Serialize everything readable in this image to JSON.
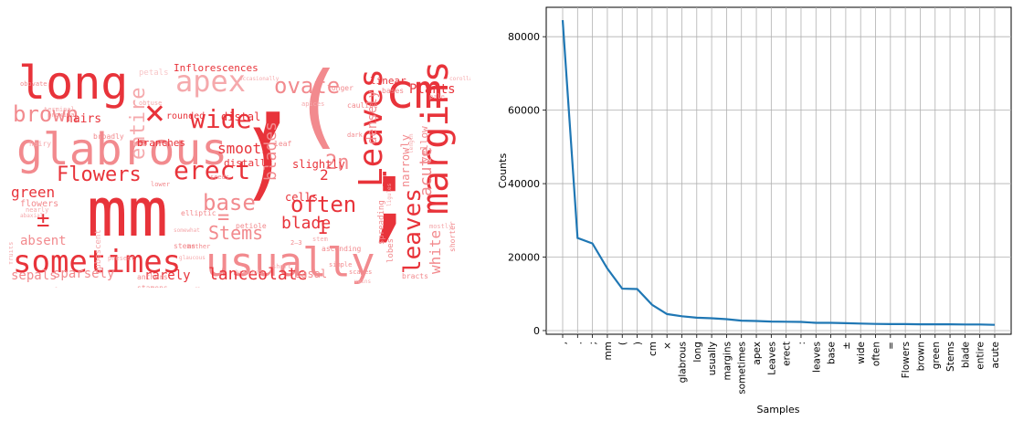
{
  "wordcloud": {
    "palette": [
      "#e8333a",
      "#ee5a5f",
      "#f28a8e",
      "#f5a9ac",
      "#f8c7c9",
      "#fbdcdd"
    ],
    "words": [
      {
        "text": "mm",
        "size": 74,
        "color": "#e8333a"
      },
      {
        "text": ",",
        "size": 120,
        "color": "#e8333a"
      },
      {
        "text": ";",
        "size": 110,
        "color": "#e8333a"
      },
      {
        "text": "(",
        "size": 100,
        "color": "#f28a8e"
      },
      {
        "text": ")",
        "size": 90,
        "color": "#e8333a"
      },
      {
        "text": "cm",
        "size": 52,
        "color": "#e8333a"
      },
      {
        "text": "long",
        "size": 50,
        "color": "#e8333a"
      },
      {
        "text": "glabrous",
        "size": 48,
        "color": "#f28a8e"
      },
      {
        "text": "usually",
        "size": 44,
        "color": "#f28a8e"
      },
      {
        "text": "margins",
        "size": 40,
        "color": "#e8333a"
      },
      {
        "text": "sometimes",
        "size": 34,
        "color": "#e8333a"
      },
      {
        "text": "Leaves",
        "size": 36,
        "color": "#e8333a"
      },
      {
        "text": "apex",
        "size": 32,
        "color": "#f5a9ac"
      },
      {
        "text": "×",
        "size": 38,
        "color": "#e8333a"
      },
      {
        "text": "wide",
        "size": 28,
        "color": "#e8333a"
      },
      {
        "text": "erect",
        "size": 28,
        "color": "#e8333a"
      },
      {
        "text": "brown",
        "size": 24,
        "color": "#f28a8e"
      },
      {
        "text": "ovate",
        "size": 24,
        "color": "#f28a8e"
      },
      {
        "text": "entire",
        "size": 22,
        "color": "#f5a9ac"
      },
      {
        "text": "Flowers",
        "size": 22,
        "color": "#e8333a"
      },
      {
        "text": "leaves",
        "size": 26,
        "color": "#e8333a"
      },
      {
        "text": "base",
        "size": 24,
        "color": "#f28a8e"
      },
      {
        "text": "often",
        "size": 24,
        "color": "#e8333a"
      },
      {
        "text": "Stems",
        "size": 20,
        "color": "#f28a8e"
      },
      {
        "text": "smooth",
        "size": 16,
        "color": "#e8333a"
      },
      {
        "text": "blades",
        "size": 18,
        "color": "#f28a8e"
      },
      {
        "text": "blade",
        "size": 18,
        "color": "#e8333a"
      },
      {
        "text": "2n",
        "size": 22,
        "color": "#f28a8e"
      },
      {
        "text": "acute",
        "size": 18,
        "color": "#f28a8e"
      },
      {
        "text": "densely",
        "size": 14,
        "color": "#f28a8e"
      },
      {
        "text": "green",
        "size": 16,
        "color": "#e8333a"
      },
      {
        "text": "lanceolate",
        "size": 18,
        "color": "#e8333a"
      },
      {
        "text": "white",
        "size": 16,
        "color": "#f28a8e"
      },
      {
        "text": "sparsely",
        "size": 14,
        "color": "#f28a8e"
      },
      {
        "text": "rarely",
        "size": 14,
        "color": "#e8333a"
      },
      {
        "text": "sepals",
        "size": 14,
        "color": "#f28a8e"
      },
      {
        "text": "absent",
        "size": 14,
        "color": "#f28a8e"
      },
      {
        "text": "narrowly",
        "size": 12,
        "color": "#f28a8e"
      },
      {
        "text": "distal",
        "size": 12,
        "color": "#e8333a"
      },
      {
        "text": "Plants",
        "size": 14,
        "color": "#e8333a"
      },
      {
        "text": "Inflorescences",
        "size": 11,
        "color": "#e8333a"
      },
      {
        "text": "hairs",
        "size": 13,
        "color": "#e8333a"
      },
      {
        "text": "branches",
        "size": 11,
        "color": "#e8333a"
      },
      {
        "text": "slightly",
        "size": 12,
        "color": "#e8333a"
      },
      {
        "text": "cells",
        "size": 12,
        "color": "#e8333a"
      },
      {
        "text": "basal",
        "size": 12,
        "color": "#f28a8e"
      },
      {
        "text": "distally",
        "size": 11,
        "color": "#e8333a"
      },
      {
        "text": "yellow",
        "size": 11,
        "color": "#f28a8e"
      },
      {
        "text": "linear",
        "size": 11,
        "color": "#e8333a"
      },
      {
        "text": "rounded",
        "size": 10,
        "color": "#e8333a"
      },
      {
        "text": "flowers",
        "size": 10,
        "color": "#f28a8e"
      },
      {
        "text": "±",
        "size": 24,
        "color": "#e8333a"
      },
      {
        "text": "=",
        "size": 22,
        "color": "#f28a8e"
      },
      {
        "text": ":",
        "size": 30,
        "color": "#e8333a"
      },
      {
        "text": "1",
        "size": 20,
        "color": "#e8333a"
      },
      {
        "text": "2",
        "size": 16,
        "color": "#e8333a"
      },
      {
        "text": "lobes",
        "size": 9,
        "color": "#f28a8e"
      },
      {
        "text": "spreading",
        "size": 9,
        "color": "#f28a8e"
      },
      {
        "text": "petals",
        "size": 9,
        "color": "#f8c7c9"
      },
      {
        "text": "bracts",
        "size": 8,
        "color": "#f28a8e"
      },
      {
        "text": "stamens",
        "size": 8,
        "color": "#f28a8e"
      },
      {
        "text": "hairy",
        "size": 8,
        "color": "#f5a9ac"
      },
      {
        "text": "leaf",
        "size": 8,
        "color": "#f28a8e"
      },
      {
        "text": "cauline",
        "size": 8,
        "color": "#f28a8e"
      },
      {
        "text": "petiole",
        "size": 8,
        "color": "#f28a8e"
      },
      {
        "text": "ascending",
        "size": 8,
        "color": "#f28a8e"
      },
      {
        "text": "stems",
        "size": 8,
        "color": "#f28a8e"
      },
      {
        "text": "anthers",
        "size": 8,
        "color": "#f28a8e"
      },
      {
        "text": "pubescent",
        "size": 9,
        "color": "#f5a9ac"
      },
      {
        "text": "longer",
        "size": 8,
        "color": "#f28a8e"
      },
      {
        "text": "shorter",
        "size": 8,
        "color": "#f28a8e"
      },
      {
        "text": "bases",
        "size": 8,
        "color": "#f28a8e"
      },
      {
        "text": "broadly",
        "size": 8,
        "color": "#f28a8e"
      },
      {
        "text": "elliptic",
        "size": 8,
        "color": "#f28a8e"
      },
      {
        "text": "apices",
        "size": 7,
        "color": "#f5a9ac"
      },
      {
        "text": "lower",
        "size": 7,
        "color": "#f28a8e"
      },
      {
        "text": "present",
        "size": 7,
        "color": "#f5a9ac"
      },
      {
        "text": "dark",
        "size": 7,
        "color": "#f28a8e"
      },
      {
        "text": "florets",
        "size": 7,
        "color": "#f5a9ac"
      },
      {
        "text": "scales",
        "size": 7,
        "color": "#f28a8e"
      },
      {
        "text": "mostly",
        "size": 7,
        "color": "#f5a9ac"
      },
      {
        "text": "surfaces",
        "size": 7,
        "color": "#f5a9ac"
      },
      {
        "text": "nearly",
        "size": 7,
        "color": "#f5a9ac"
      },
      {
        "text": "fruits",
        "size": 7,
        "color": "#f5a9ac"
      },
      {
        "text": "simple",
        "size": 7,
        "color": "#f28a8e"
      },
      {
        "text": "proximal",
        "size": 7,
        "color": "#f28a8e"
      },
      {
        "text": "obtuse",
        "size": 7,
        "color": "#f5a9ac"
      },
      {
        "text": "seeds",
        "size": 7,
        "color": "#f28a8e"
      },
      {
        "text": "stem",
        "size": 7,
        "color": "#f5a9ac"
      },
      {
        "text": "short",
        "size": 7,
        "color": "#f5a9ac"
      },
      {
        "text": "pale",
        "size": 7,
        "color": "#f5a9ac"
      },
      {
        "text": "obovate",
        "size": 7,
        "color": "#f28a8e"
      },
      {
        "text": "terminal",
        "size": 7,
        "color": "#f5a9ac"
      },
      {
        "text": "2–3",
        "size": 7,
        "color": "#f28a8e"
      },
      {
        "text": "length",
        "size": 6,
        "color": "#f5a9ac"
      },
      {
        "text": "corollas",
        "size": 6,
        "color": "#f5a9ac"
      },
      {
        "text": "ligules",
        "size": 6,
        "color": "#f5a9ac"
      },
      {
        "text": "occasionally",
        "size": 6,
        "color": "#f5a9ac"
      },
      {
        "text": "abaxial",
        "size": 6,
        "color": "#f5a9ac"
      },
      {
        "text": "branched",
        "size": 6,
        "color": "#f5a9ac"
      },
      {
        "text": "somewhat",
        "size": 6,
        "color": "#f5a9ac"
      },
      {
        "text": "anther",
        "size": 7,
        "color": "#f28a8e"
      },
      {
        "text": "glaucous",
        "size": 6,
        "color": "#f5a9ac"
      },
      {
        "text": "veins",
        "size": 6,
        "color": "#f5a9ac"
      }
    ]
  },
  "chart_data": {
    "type": "line",
    "xlabel": "Samples",
    "ylabel": "Counts",
    "ylim": [
      -1000,
      88000
    ],
    "yticks": [
      0,
      20000,
      40000,
      60000,
      80000
    ],
    "grid": true,
    "line_color": "#1f77b4",
    "categories": [
      ",",
      ".",
      ";",
      "mm",
      "(",
      ")",
      "cm",
      "×",
      "glabrous",
      "long",
      "usually",
      "margins",
      "sometimes",
      "apex",
      "Leaves",
      "erect",
      ":",
      "leaves",
      "base",
      "±",
      "wide",
      "often",
      "=",
      "Flowers",
      "brown",
      "green",
      "Stems",
      "blade",
      "entire",
      "acute"
    ],
    "values": [
      84500,
      25200,
      23700,
      16900,
      11400,
      11300,
      7000,
      4500,
      3900,
      3500,
      3350,
      3100,
      2700,
      2600,
      2450,
      2400,
      2350,
      2100,
      2100,
      2000,
      1900,
      1800,
      1750,
      1750,
      1700,
      1700,
      1700,
      1650,
      1650,
      1550
    ]
  }
}
